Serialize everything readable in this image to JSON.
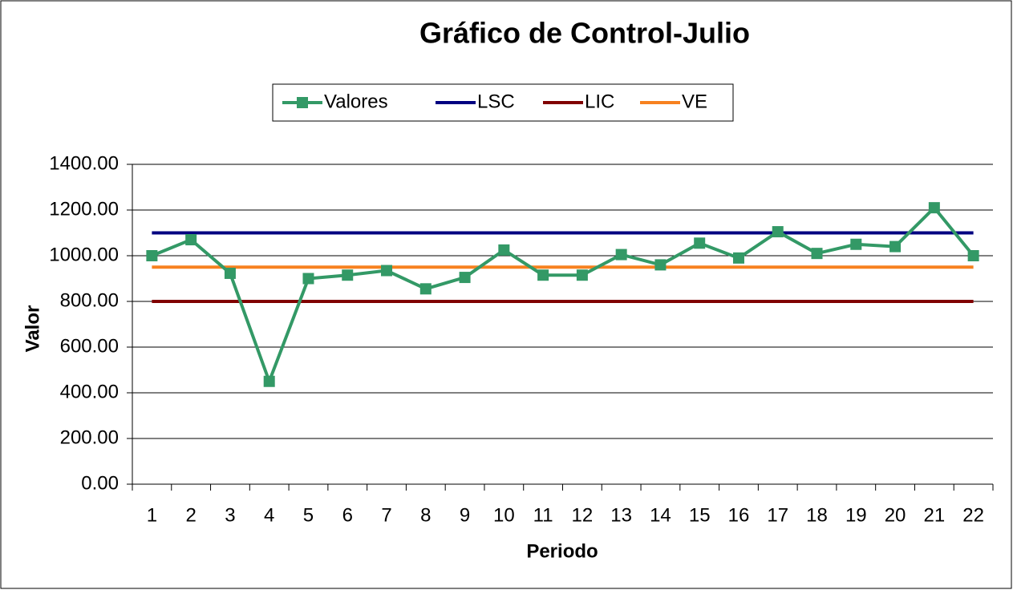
{
  "chart_data": {
    "type": "line",
    "title": "Gráfico de Control-Julio",
    "x_label": "Periodo",
    "y_label": "Valor",
    "categories": [
      "1",
      "2",
      "3",
      "4",
      "5",
      "6",
      "7",
      "8",
      "9",
      "10",
      "11",
      "12",
      "13",
      "14",
      "15",
      "16",
      "17",
      "18",
      "19",
      "20",
      "21",
      "22"
    ],
    "series": [
      {
        "name": "Valores",
        "color": "#339966",
        "marker": "square",
        "values": [
          1000,
          1070,
          923,
          450,
          900,
          915,
          935,
          855,
          905,
          1025,
          915,
          915,
          1005,
          960,
          1055,
          990,
          1105,
          1010,
          1050,
          1040,
          1210,
          1000
        ]
      },
      {
        "name": "LSC",
        "color": "#000080",
        "values": [
          1100,
          1100,
          1100,
          1100,
          1100,
          1100,
          1100,
          1100,
          1100,
          1100,
          1100,
          1100,
          1100,
          1100,
          1100,
          1100,
          1100,
          1100,
          1100,
          1100,
          1100,
          1100
        ]
      },
      {
        "name": "LIC",
        "color": "#800000",
        "values": [
          800,
          800,
          800,
          800,
          800,
          800,
          800,
          800,
          800,
          800,
          800,
          800,
          800,
          800,
          800,
          800,
          800,
          800,
          800,
          800,
          800,
          800
        ]
      },
      {
        "name": "VE",
        "color": "#f7811f",
        "values": [
          950,
          950,
          950,
          950,
          950,
          950,
          950,
          950,
          950,
          950,
          950,
          950,
          950,
          950,
          950,
          950,
          950,
          950,
          950,
          950,
          950,
          950
        ]
      }
    ],
    "ylim": [
      0,
      1400
    ],
    "yticks": [
      {
        "value": 0,
        "label": "0.00"
      },
      {
        "value": 200,
        "label": "200.00"
      },
      {
        "value": 400,
        "label": "400.00"
      },
      {
        "value": 600,
        "label": "600.00"
      },
      {
        "value": 800,
        "label": "800.00"
      },
      {
        "value": 1000,
        "label": "1000.00"
      },
      {
        "value": 1200,
        "label": "1200.00"
      },
      {
        "value": 1400,
        "label": "1400.00"
      }
    ],
    "grid": true,
    "legend": "top"
  }
}
